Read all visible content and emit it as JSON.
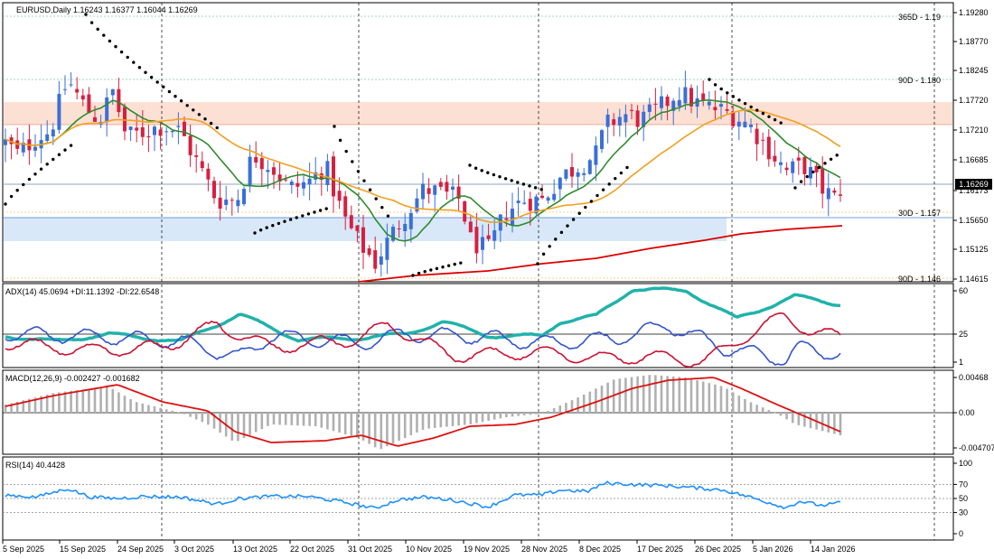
{
  "main_panel": {
    "title": "EURUSD,Daily  1.16243 1.16377 1.16044 1.16269",
    "price_ticks": [
      "1.19280",
      "1.18770",
      "1.18245",
      "1.17720",
      "1.17210",
      "1.16685",
      "1.16173",
      "1.15650",
      "1.15125",
      "1.14615"
    ],
    "current_price": "1.16269",
    "levels": [
      {
        "label": "365D - 1.19",
        "color": "#3cb371"
      },
      {
        "label": "90D - 1.180",
        "color": "#3cb371"
      },
      {
        "label": "30D - 1.157",
        "color": "#f5a623"
      },
      {
        "label": "90D - 1.146",
        "color": "#f5a623"
      }
    ]
  },
  "adx_panel": {
    "title": "ADX(14) 45.0694 +DI:11.1392 -DI:22.6548",
    "ticks": [
      "60",
      "25",
      "1"
    ],
    "level_marker": "25"
  },
  "macd_panel": {
    "title": "MACD(12,26,9) -0.002427 -0.001682",
    "ticks": [
      "0.00468",
      "0.00",
      "-0.004707"
    ]
  },
  "rsi_panel": {
    "title": "RSI(14) 40.4428",
    "ticks": [
      "100",
      "70",
      "50",
      "30",
      "0"
    ]
  },
  "time_axis": [
    "5 Sep 2025",
    "15 Sep 2025",
    "24 Sep 2025",
    "3 Oct 2025",
    "13 Oct 2025",
    "22 Oct 2025",
    "31 Oct 2025",
    "10 Nov 2025",
    "19 Nov 2025",
    "28 Nov 2025",
    "8 Dec 2025",
    "17 Dec 2025",
    "26 Dec 2025",
    "5 Jan 2026",
    "14 Jan 2026"
  ],
  "colors": {
    "bull": "#3a6fd8",
    "bear": "#d62040",
    "ma_green": "#2e8b2e",
    "ma_orange": "#f0a020",
    "ma_red": "#dd0000",
    "adx": "#20b2aa",
    "plus_di": "#3355cc",
    "minus_di": "#cc1133",
    "macd_hist": "#b0b0b0",
    "macd_signal": "#dd1111",
    "rsi": "#1e90ff",
    "resistance_zone": "#fde0d4",
    "support_zone": "#d8e8f8"
  },
  "chart_data": {
    "type": "line",
    "title": "EURUSD,Daily",
    "x": [
      "5 Sep 2025",
      "15 Sep 2025",
      "24 Sep 2025",
      "3 Oct 2025",
      "13 Oct 2025",
      "22 Oct 2025",
      "31 Oct 2025",
      "10 Nov 2025",
      "19 Nov 2025",
      "28 Nov 2025",
      "8 Dec 2025",
      "17 Dec 2025",
      "26 Dec 2025",
      "5 Jan 2026",
      "14 Jan 2026"
    ],
    "series": [
      {
        "values": [
          1.172,
          1.1765,
          1.173,
          1.172,
          1.164,
          1.16,
          1.153,
          1.157,
          1.153,
          1.16,
          1.166,
          1.175,
          1.177,
          1.17,
          1.162
        ]
      }
    ],
    "ylim": [
      1.144,
      1.194
    ]
  }
}
